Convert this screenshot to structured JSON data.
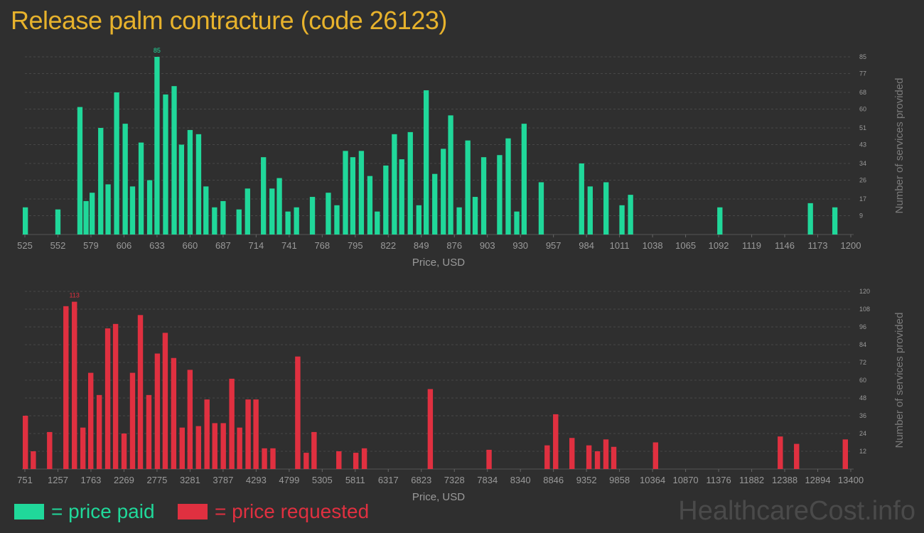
{
  "title": "Release palm contracture (code 26123)",
  "watermark": "HealthcareCost.info",
  "colors": {
    "paid": "#20d89a",
    "requested": "#e03040",
    "axis_text": "#9a9a9a",
    "grid": "#474747",
    "title": "#e7b22c"
  },
  "legend": [
    {
      "label": "= price paid",
      "color": "#20d89a"
    },
    {
      "label": "= price requested",
      "color": "#e03040"
    }
  ],
  "chart_data": [
    {
      "type": "bar",
      "series_name": "price paid",
      "xlabel": "Price, USD",
      "ylabel": "Number of services provided",
      "x_ticks": [
        "525",
        "552",
        "579",
        "606",
        "633",
        "660",
        "687",
        "714",
        "741",
        "768",
        "795",
        "822",
        "849",
        "876",
        "903",
        "930",
        "957",
        "984",
        "1011",
        "1038",
        "1065",
        "1092",
        "1119",
        "1146",
        "1173",
        "1200"
      ],
      "y_ticks": [
        9,
        17,
        26,
        34,
        43,
        51,
        60,
        68,
        77,
        85
      ],
      "ylim": [
        0,
        85
      ],
      "xlim": [
        525,
        1200
      ],
      "bar_width": 5,
      "max_label": "85",
      "grid": true,
      "legend_position": "bottom-left",
      "bars": [
        {
          "x": 525,
          "y": 13
        },
        {
          "x": 552,
          "y": 12
        },
        {
          "x": 570,
          "y": 61
        },
        {
          "x": 575,
          "y": 16
        },
        {
          "x": 580,
          "y": 20
        },
        {
          "x": 587,
          "y": 51
        },
        {
          "x": 593,
          "y": 24
        },
        {
          "x": 600,
          "y": 68
        },
        {
          "x": 607,
          "y": 53
        },
        {
          "x": 613,
          "y": 23
        },
        {
          "x": 620,
          "y": 44
        },
        {
          "x": 627,
          "y": 26
        },
        {
          "x": 633,
          "y": 85
        },
        {
          "x": 640,
          "y": 67
        },
        {
          "x": 647,
          "y": 71
        },
        {
          "x": 653,
          "y": 43
        },
        {
          "x": 660,
          "y": 50
        },
        {
          "x": 667,
          "y": 48
        },
        {
          "x": 673,
          "y": 23
        },
        {
          "x": 680,
          "y": 13
        },
        {
          "x": 687,
          "y": 16
        },
        {
          "x": 700,
          "y": 12
        },
        {
          "x": 707,
          "y": 22
        },
        {
          "x": 720,
          "y": 37
        },
        {
          "x": 727,
          "y": 22
        },
        {
          "x": 733,
          "y": 27
        },
        {
          "x": 740,
          "y": 11
        },
        {
          "x": 747,
          "y": 13
        },
        {
          "x": 760,
          "y": 18
        },
        {
          "x": 773,
          "y": 20
        },
        {
          "x": 780,
          "y": 14
        },
        {
          "x": 787,
          "y": 40
        },
        {
          "x": 793,
          "y": 37
        },
        {
          "x": 800,
          "y": 40
        },
        {
          "x": 807,
          "y": 28
        },
        {
          "x": 813,
          "y": 11
        },
        {
          "x": 820,
          "y": 33
        },
        {
          "x": 827,
          "y": 48
        },
        {
          "x": 833,
          "y": 36
        },
        {
          "x": 840,
          "y": 49
        },
        {
          "x": 847,
          "y": 14
        },
        {
          "x": 853,
          "y": 69
        },
        {
          "x": 860,
          "y": 29
        },
        {
          "x": 867,
          "y": 41
        },
        {
          "x": 873,
          "y": 57
        },
        {
          "x": 880,
          "y": 13
        },
        {
          "x": 887,
          "y": 45
        },
        {
          "x": 893,
          "y": 18
        },
        {
          "x": 900,
          "y": 37
        },
        {
          "x": 913,
          "y": 38
        },
        {
          "x": 920,
          "y": 46
        },
        {
          "x": 927,
          "y": 11
        },
        {
          "x": 933,
          "y": 53
        },
        {
          "x": 947,
          "y": 25
        },
        {
          "x": 980,
          "y": 34
        },
        {
          "x": 987,
          "y": 23
        },
        {
          "x": 1000,
          "y": 25
        },
        {
          "x": 1013,
          "y": 14
        },
        {
          "x": 1020,
          "y": 19
        },
        {
          "x": 1093,
          "y": 13
        },
        {
          "x": 1167,
          "y": 15
        },
        {
          "x": 1187,
          "y": 13
        }
      ]
    },
    {
      "type": "bar",
      "series_name": "price requested",
      "xlabel": "Price, USD",
      "ylabel": "Number of services provided",
      "x_ticks": [
        "751",
        "1257",
        "1763",
        "2269",
        "2775",
        "3281",
        "3787",
        "4293",
        "4799",
        "5305",
        "5811",
        "6317",
        "6823",
        "7328",
        "7834",
        "8340",
        "8846",
        "9352",
        "9858",
        "10364",
        "10870",
        "11376",
        "11882",
        "12388",
        "12894",
        "13400"
      ],
      "y_ticks": [
        12,
        24,
        36,
        48,
        60,
        72,
        84,
        96,
        108,
        120
      ],
      "ylim": [
        0,
        120
      ],
      "xlim": [
        751,
        13400
      ],
      "bar_width": 95,
      "max_label": "113",
      "grid": true,
      "legend_position": "bottom-left",
      "bars": [
        {
          "x": 751,
          "y": 36
        },
        {
          "x": 880,
          "y": 12
        },
        {
          "x": 1130,
          "y": 25
        },
        {
          "x": 1380,
          "y": 110
        },
        {
          "x": 1510,
          "y": 113
        },
        {
          "x": 1640,
          "y": 28
        },
        {
          "x": 1760,
          "y": 65
        },
        {
          "x": 1890,
          "y": 50
        },
        {
          "x": 2020,
          "y": 95
        },
        {
          "x": 2140,
          "y": 98
        },
        {
          "x": 2270,
          "y": 24
        },
        {
          "x": 2400,
          "y": 65
        },
        {
          "x": 2520,
          "y": 104
        },
        {
          "x": 2650,
          "y": 50
        },
        {
          "x": 2780,
          "y": 78
        },
        {
          "x": 2900,
          "y": 92
        },
        {
          "x": 3030,
          "y": 75
        },
        {
          "x": 3160,
          "y": 28
        },
        {
          "x": 3280,
          "y": 67
        },
        {
          "x": 3410,
          "y": 29
        },
        {
          "x": 3540,
          "y": 47
        },
        {
          "x": 3660,
          "y": 31
        },
        {
          "x": 3790,
          "y": 31
        },
        {
          "x": 3920,
          "y": 61
        },
        {
          "x": 4040,
          "y": 28
        },
        {
          "x": 4170,
          "y": 47
        },
        {
          "x": 4290,
          "y": 47
        },
        {
          "x": 4420,
          "y": 14
        },
        {
          "x": 4550,
          "y": 14
        },
        {
          "x": 4930,
          "y": 76
        },
        {
          "x": 5060,
          "y": 11
        },
        {
          "x": 5180,
          "y": 25
        },
        {
          "x": 5560,
          "y": 12
        },
        {
          "x": 5820,
          "y": 11
        },
        {
          "x": 5950,
          "y": 14
        },
        {
          "x": 6960,
          "y": 54
        },
        {
          "x": 7860,
          "y": 13
        },
        {
          "x": 8750,
          "y": 16
        },
        {
          "x": 8880,
          "y": 37
        },
        {
          "x": 9130,
          "y": 21
        },
        {
          "x": 9390,
          "y": 16
        },
        {
          "x": 9520,
          "y": 12
        },
        {
          "x": 9650,
          "y": 20
        },
        {
          "x": 9770,
          "y": 15
        },
        {
          "x": 10410,
          "y": 18
        },
        {
          "x": 12320,
          "y": 22
        },
        {
          "x": 12570,
          "y": 17
        },
        {
          "x": 13340,
          "y": 20
        }
      ]
    }
  ]
}
